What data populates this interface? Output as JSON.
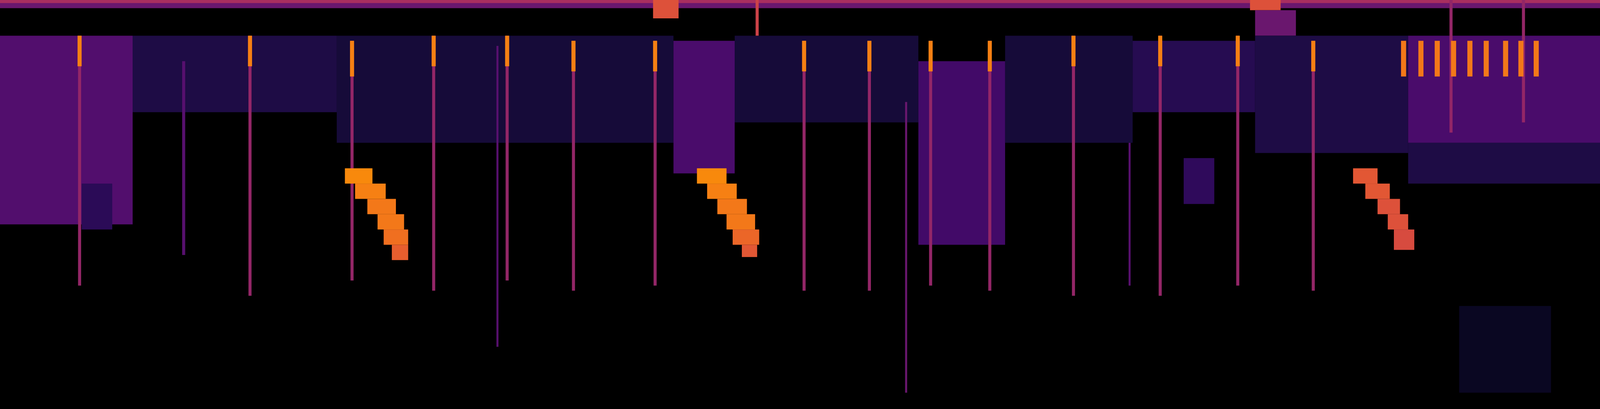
{
  "chart_data": {
    "type": "heatmap",
    "tick_labels": false,
    "color": "inferno",
    "xlim": [
      0,
      1568
    ],
    "ylim": [
      401,
      0
    ],
    "zlim": [
      0,
      1
    ],
    "cells": [
      [
        0,
        1568,
        0,
        8,
        0.3
      ],
      [
        0,
        1568,
        0,
        3,
        0.45
      ],
      [
        640,
        665,
        0,
        18,
        0.6
      ],
      [
        1225,
        1255,
        0,
        10,
        0.6
      ],
      [
        1230,
        1270,
        10,
        35,
        0.3
      ],
      [
        0,
        130,
        35,
        220,
        0.24
      ],
      [
        80,
        110,
        180,
        225,
        0.15
      ],
      [
        130,
        330,
        35,
        110,
        0.12
      ],
      [
        330,
        660,
        35,
        140,
        0.1
      ],
      [
        660,
        720,
        40,
        170,
        0.22
      ],
      [
        720,
        900,
        35,
        120,
        0.1
      ],
      [
        900,
        985,
        60,
        240,
        0.2
      ],
      [
        985,
        1110,
        35,
        140,
        0.1
      ],
      [
        1110,
        1230,
        40,
        110,
        0.14
      ],
      [
        1160,
        1190,
        155,
        200,
        0.16
      ],
      [
        1230,
        1380,
        35,
        150,
        0.12
      ],
      [
        1380,
        1568,
        35,
        140,
        0.22
      ],
      [
        1380,
        1568,
        140,
        180,
        0.12
      ],
      [
        1430,
        1520,
        300,
        385,
        0.06
      ],
      [
        76.5,
        79.5,
        35,
        280,
        0.4
      ],
      [
        76,
        80,
        35,
        65,
        0.72
      ],
      [
        178.5,
        181.5,
        60,
        250,
        0.25
      ],
      [
        243.5,
        246.5,
        35,
        290,
        0.4
      ],
      [
        243,
        247,
        35,
        65,
        0.72
      ],
      [
        343.5,
        346.5,
        40,
        275,
        0.4
      ],
      [
        343,
        347,
        40,
        75,
        0.72
      ],
      [
        423.5,
        426.5,
        35,
        285,
        0.4
      ],
      [
        423,
        427,
        35,
        65,
        0.72
      ],
      [
        486.5,
        488.5,
        45,
        340,
        0.25
      ],
      [
        495.5,
        498.5,
        35,
        275,
        0.4
      ],
      [
        495,
        499,
        35,
        65,
        0.72
      ],
      [
        560.5,
        563.5,
        40,
        285,
        0.4
      ],
      [
        560,
        564,
        40,
        70,
        0.72
      ],
      [
        640.5,
        643.5,
        40,
        280,
        0.4
      ],
      [
        640,
        644,
        40,
        70,
        0.72
      ],
      [
        740.5,
        743.5,
        0,
        35,
        0.55
      ],
      [
        786.5,
        789.5,
        40,
        285,
        0.4
      ],
      [
        786,
        790,
        40,
        70,
        0.72
      ],
      [
        850.5,
        853.5,
        40,
        285,
        0.4
      ],
      [
        850,
        854,
        40,
        70,
        0.72
      ],
      [
        887,
        889,
        100,
        385,
        0.3
      ],
      [
        910.5,
        913.5,
        40,
        280,
        0.4
      ],
      [
        910,
        914,
        40,
        70,
        0.72
      ],
      [
        968.5,
        971.5,
        40,
        285,
        0.4
      ],
      [
        968,
        972,
        40,
        70,
        0.72
      ],
      [
        1050.5,
        1053.5,
        35,
        290,
        0.4
      ],
      [
        1050,
        1054,
        35,
        65,
        0.72
      ],
      [
        1106,
        1108,
        140,
        280,
        0.25
      ],
      [
        1135.5,
        1138.5,
        35,
        290,
        0.4
      ],
      [
        1135,
        1139,
        35,
        65,
        0.72
      ],
      [
        1211.5,
        1214.5,
        35,
        280,
        0.4
      ],
      [
        1211,
        1215,
        35,
        65,
        0.72
      ],
      [
        1285.5,
        1288.5,
        40,
        285,
        0.4
      ],
      [
        1285,
        1289,
        40,
        70,
        0.72
      ],
      [
        1420.5,
        1423.5,
        0,
        130,
        0.4
      ],
      [
        1491.5,
        1494.5,
        0,
        120,
        0.4
      ],
      [
        1373,
        1378,
        40,
        75,
        0.7
      ],
      [
        1390,
        1395,
        40,
        75,
        0.7
      ],
      [
        1406,
        1411,
        40,
        75,
        0.7
      ],
      [
        1422,
        1427,
        40,
        75,
        0.7
      ],
      [
        1438,
        1443,
        40,
        75,
        0.7
      ],
      [
        1454,
        1459,
        40,
        75,
        0.7
      ],
      [
        1473,
        1478,
        40,
        75,
        0.7
      ],
      [
        1488,
        1493,
        40,
        75,
        0.7
      ],
      [
        1503,
        1508,
        40,
        75,
        0.7
      ],
      [
        338,
        365,
        165,
        180,
        0.74
      ],
      [
        348,
        378,
        180,
        195,
        0.72
      ],
      [
        360,
        388,
        195,
        210,
        0.7
      ],
      [
        370,
        396,
        210,
        225,
        0.7
      ],
      [
        376,
        400,
        225,
        240,
        0.68
      ],
      [
        384,
        400,
        240,
        255,
        0.64
      ],
      [
        683,
        712,
        165,
        180,
        0.74
      ],
      [
        693,
        722,
        180,
        195,
        0.72
      ],
      [
        703,
        732,
        195,
        210,
        0.7
      ],
      [
        712,
        740,
        210,
        225,
        0.7
      ],
      [
        718,
        744,
        225,
        240,
        0.66
      ],
      [
        727,
        742,
        240,
        252,
        0.62
      ],
      [
        1326,
        1350,
        165,
        180,
        0.62
      ],
      [
        1338,
        1362,
        180,
        195,
        0.62
      ],
      [
        1350,
        1372,
        195,
        210,
        0.6
      ],
      [
        1360,
        1380,
        210,
        225,
        0.6
      ],
      [
        1366,
        1386,
        225,
        245,
        0.58
      ]
    ]
  }
}
